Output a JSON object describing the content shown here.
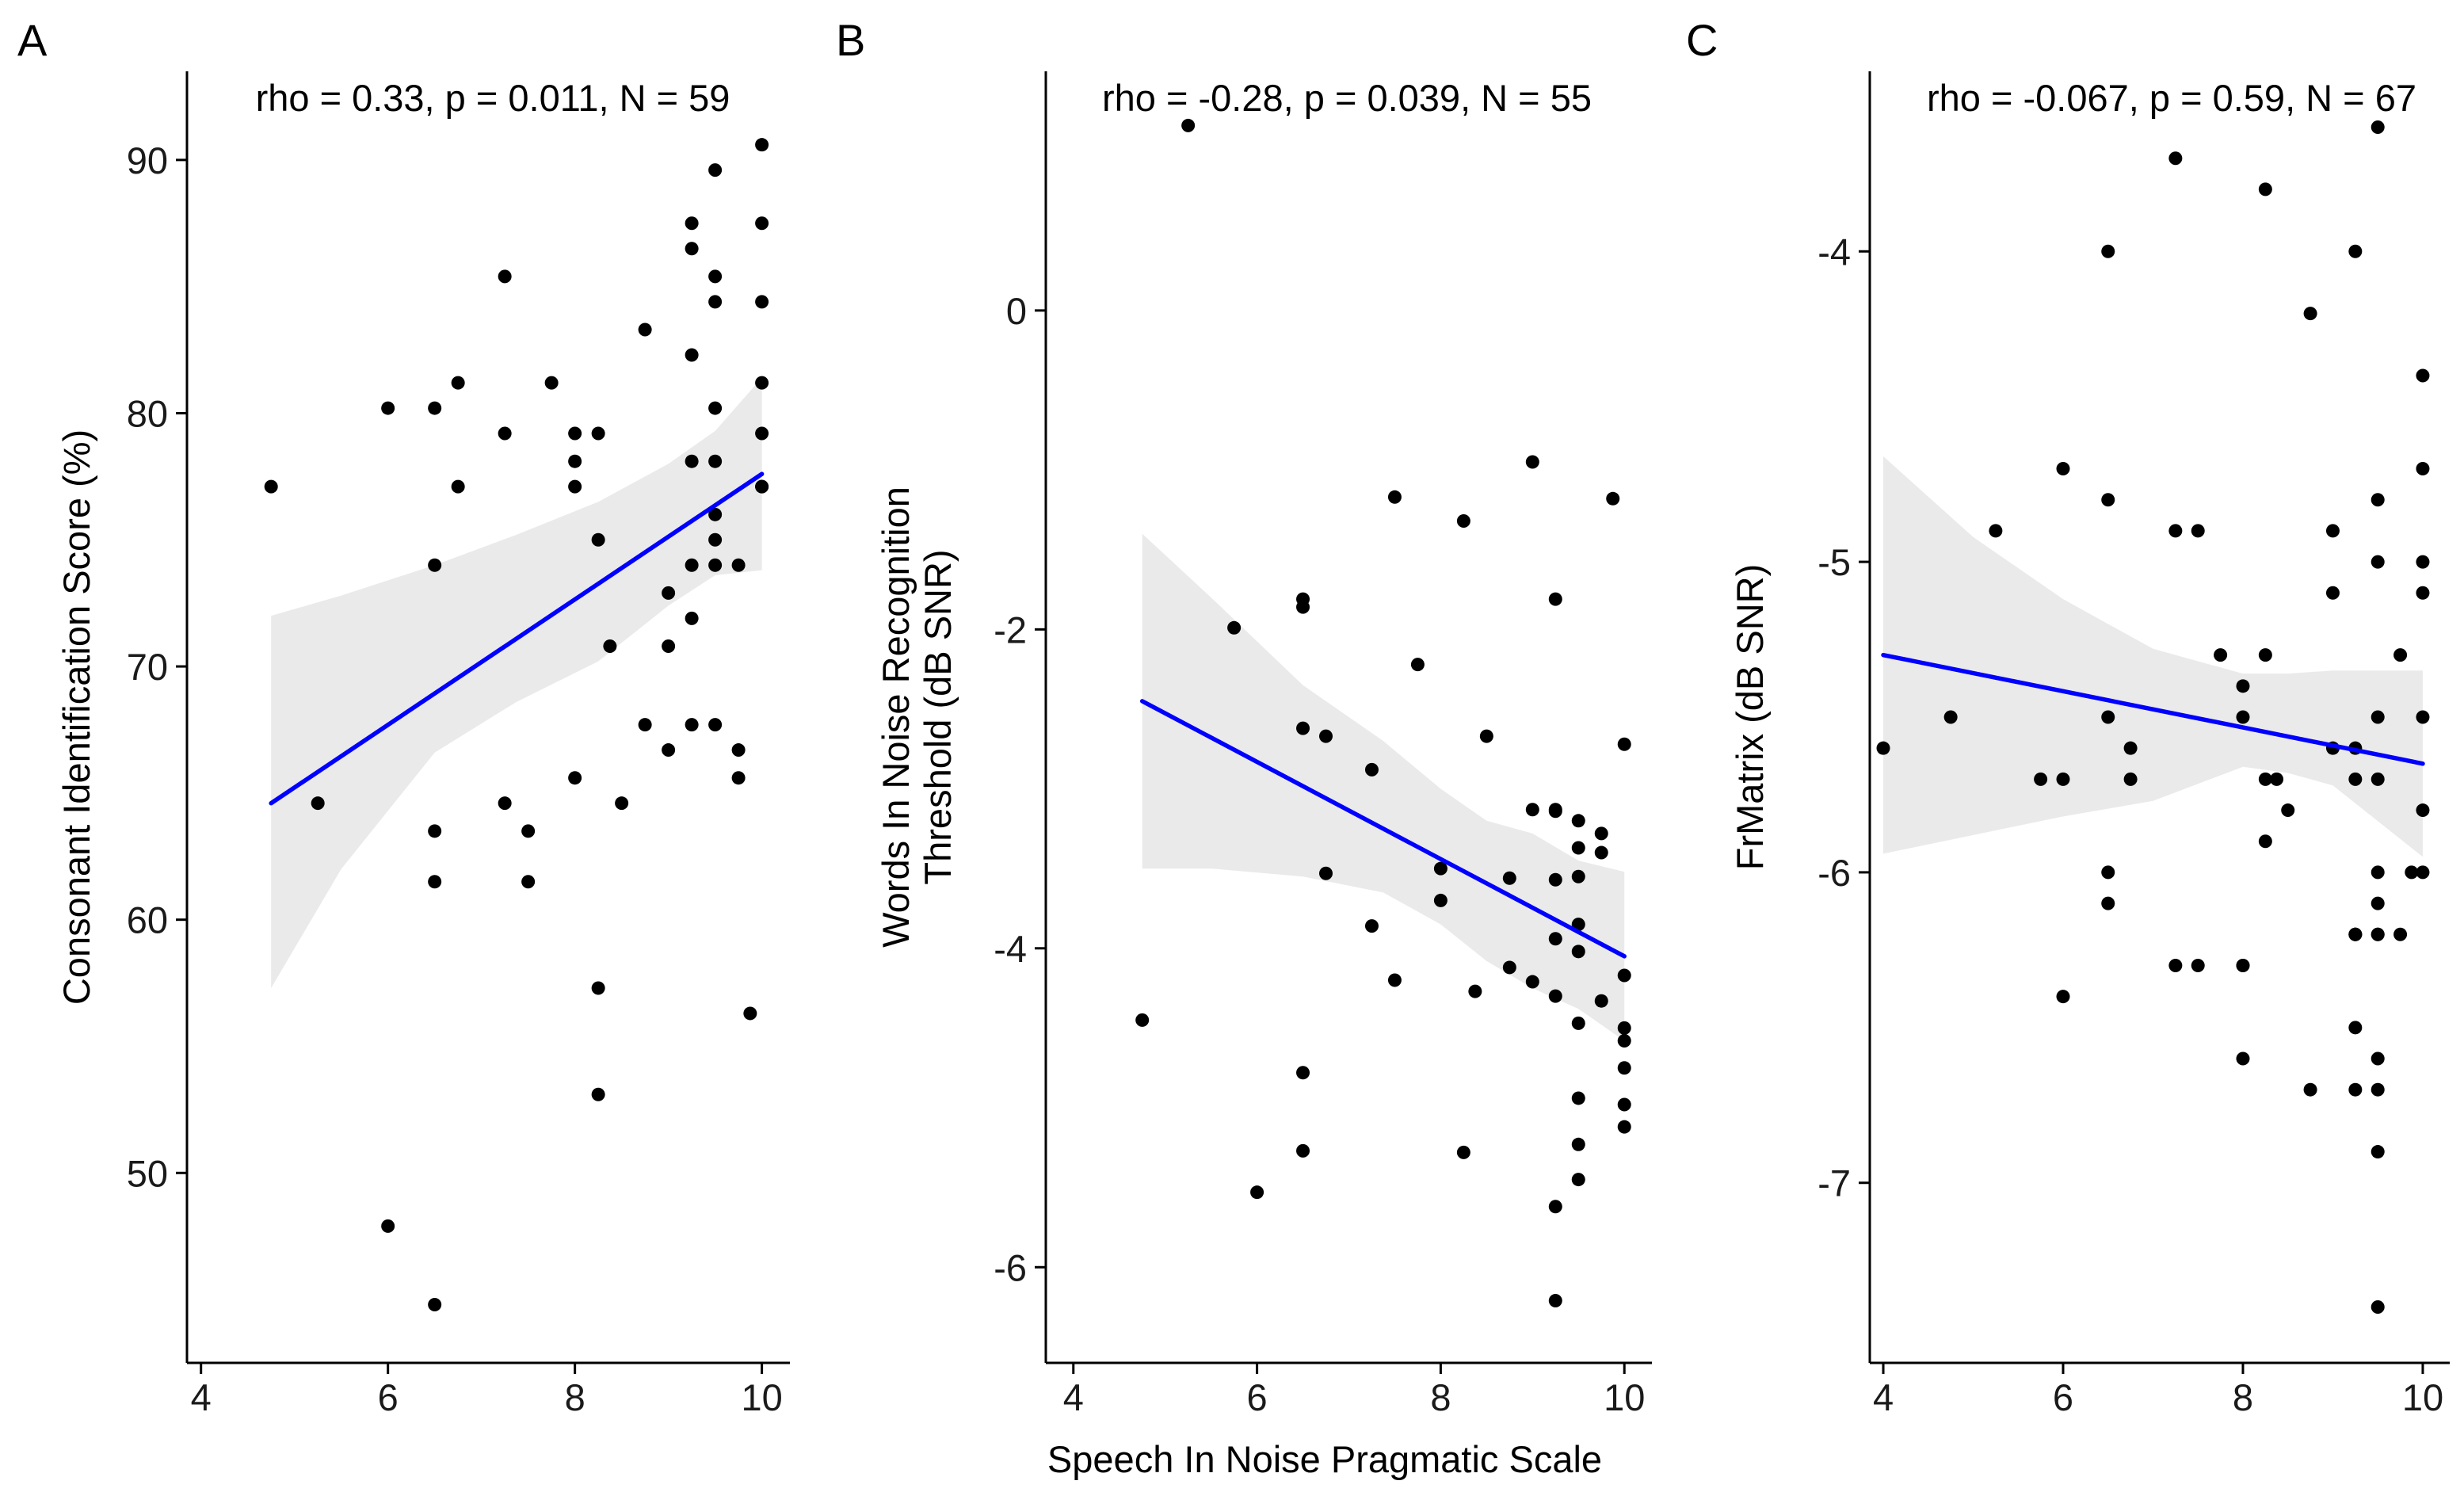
{
  "figure": {
    "xlabel": "Speech In Noise Pragmatic Scale",
    "colors": {
      "points": "#000000",
      "fit_line": "#0000ff",
      "ci_band": "#d9d9d9",
      "axis": "#000000"
    }
  },
  "chart_data": [
    {
      "panel": "A",
      "type": "scatter",
      "annotation": "rho = 0.33, p = 0.011, N = 59",
      "xlabel": "",
      "ylabel": "Consonant Identification Score (%)",
      "xlim": [
        3.85,
        10.3
      ],
      "ylim": [
        42.5,
        93.5
      ],
      "xticks": [
        4,
        6,
        8,
        10
      ],
      "xtick_labels": [
        "4",
        "6",
        "8",
        "10"
      ],
      "yticks": [
        50,
        60,
        70,
        80,
        90
      ],
      "ytick_labels": [
        "50",
        "60",
        "70",
        "80",
        "90"
      ],
      "fit": {
        "x": [
          4.75,
          10
        ],
        "y": [
          64.6,
          77.6
        ]
      },
      "ci_upper": [
        [
          4.75,
          72.0
        ],
        [
          5.5,
          72.8
        ],
        [
          6.5,
          74.0
        ],
        [
          7.375,
          75.2
        ],
        [
          8.25,
          76.5
        ],
        [
          9.0,
          78.0
        ],
        [
          9.5,
          79.3
        ],
        [
          10.0,
          81.4
        ]
      ],
      "ci_lower": [
        [
          4.75,
          57.3
        ],
        [
          5.5,
          62.0
        ],
        [
          6.5,
          66.6
        ],
        [
          7.375,
          68.6
        ],
        [
          8.25,
          70.2
        ],
        [
          9.0,
          72.4
        ],
        [
          9.5,
          73.6
        ],
        [
          10.0,
          73.8
        ]
      ],
      "points": {
        "x": [
          4.75,
          5.25,
          6,
          6,
          6.5,
          6.5,
          6.5,
          6.5,
          6.5,
          6.75,
          6.75,
          7.25,
          7.25,
          7.25,
          7.5,
          7.5,
          7.75,
          8,
          8,
          8,
          8,
          8.25,
          8.25,
          8.25,
          8.25,
          8.375,
          8.5,
          8.75,
          8.75,
          9,
          9,
          9,
          9.25,
          9.25,
          9.25,
          9.25,
          9.25,
          9.25,
          9.25,
          9.5,
          9.5,
          9.5,
          9.5,
          9.5,
          9.5,
          9.5,
          9.5,
          9.5,
          9.75,
          9.75,
          9.75,
          9.875,
          10,
          10,
          10,
          10,
          10,
          10,
          10
        ],
        "y": [
          77.1,
          64.6,
          80.2,
          47.9,
          80.2,
          74.0,
          63.5,
          61.5,
          44.8,
          81.2,
          77.1,
          85.4,
          79.2,
          64.6,
          63.5,
          61.5,
          81.2,
          79.2,
          78.1,
          77.1,
          65.6,
          79.2,
          75.0,
          57.3,
          53.1,
          70.8,
          64.6,
          83.3,
          67.7,
          72.9,
          70.8,
          66.7,
          87.5,
          86.5,
          82.3,
          78.1,
          74.0,
          71.9,
          67.7,
          89.6,
          85.4,
          84.4,
          80.2,
          78.1,
          76.0,
          75.0,
          74.0,
          67.7,
          74.0,
          66.7,
          65.6,
          56.3,
          90.6,
          87.5,
          84.4,
          81.2,
          79.2,
          77.1,
          77.1
        ]
      }
    },
    {
      "panel": "B",
      "type": "scatter",
      "annotation": "rho = -0.28, p = 0.039, N = 55",
      "xlabel": "Speech In Noise Pragmatic Scale",
      "ylabel": "Words In Noise Recognition Threshold (dB SNR)",
      "ylabel_lines": [
        "Words In Noise Recognition",
        "Threshold (dB SNR)"
      ],
      "xlim": [
        3.7,
        10.3
      ],
      "ylim": [
        -6.6,
        1.5
      ],
      "xticks": [
        4,
        6,
        8,
        10
      ],
      "xtick_labels": [
        "4",
        "6",
        "8",
        "10"
      ],
      "yticks": [
        -6,
        -4,
        -2,
        0
      ],
      "ytick_labels": [
        "-6",
        "-4",
        "-2",
        "0"
      ],
      "fit": {
        "x": [
          4.75,
          10
        ],
        "y": [
          -2.45,
          -4.05
        ]
      },
      "ci_upper": [
        [
          4.75,
          -1.4
        ],
        [
          5.5,
          -1.8
        ],
        [
          6.5,
          -2.35
        ],
        [
          7.375,
          -2.7
        ],
        [
          8.0,
          -3.0
        ],
        [
          8.5,
          -3.2
        ],
        [
          9.0,
          -3.28
        ],
        [
          9.5,
          -3.45
        ],
        [
          10.0,
          -3.52
        ]
      ],
      "ci_lower": [
        [
          4.75,
          -3.5
        ],
        [
          5.5,
          -3.5
        ],
        [
          6.5,
          -3.55
        ],
        [
          7.375,
          -3.65
        ],
        [
          8.0,
          -3.85
        ],
        [
          8.5,
          -4.08
        ],
        [
          9.0,
          -4.25
        ],
        [
          9.5,
          -4.38
        ],
        [
          10.0,
          -4.58
        ]
      ],
      "points": {
        "x": [
          4.75,
          5.25,
          5.75,
          6,
          6.5,
          6.5,
          6.5,
          6.5,
          6.5,
          6.75,
          6.75,
          7.25,
          7.25,
          7.5,
          7.5,
          7.75,
          8,
          8,
          8.25,
          8.25,
          8.375,
          8.5,
          8.75,
          8.75,
          9,
          9,
          9,
          9.25,
          9.25,
          9.25,
          9.25,
          9.25,
          9.25,
          9.25,
          9.25,
          9.5,
          9.5,
          9.5,
          9.5,
          9.5,
          9.5,
          9.5,
          9.5,
          9.5,
          9.75,
          9.75,
          9.75,
          9.875,
          10,
          10,
          10,
          10,
          10,
          10,
          10
        ],
        "y": [
          -4.45,
          1.16,
          -1.99,
          -5.53,
          -1.81,
          -1.86,
          -2.62,
          -4.78,
          -5.27,
          -2.67,
          -3.53,
          -2.88,
          -3.86,
          -1.17,
          -4.2,
          -2.22,
          -3.5,
          -3.7,
          -1.32,
          -5.28,
          -4.27,
          -2.67,
          -3.56,
          -4.12,
          -0.95,
          -3.13,
          -4.21,
          -1.81,
          -3.14,
          -3.57,
          -3.94,
          -4.3,
          -5.62,
          -6.21,
          -3.13,
          -3.2,
          -3.37,
          -3.55,
          -3.85,
          -4.02,
          -4.47,
          -4.94,
          -5.23,
          -5.45,
          -3.28,
          -3.4,
          -4.33,
          -1.18,
          -2.72,
          -4.17,
          -4.5,
          -4.58,
          -4.75,
          -4.98,
          -5.12
        ]
      }
    },
    {
      "panel": "C",
      "type": "scatter",
      "annotation": "rho = -0.067, p = 0.59, N = 67",
      "xlabel": "",
      "ylabel": "FrMatrix (dB SNR)",
      "xlim": [
        3.85,
        10.3
      ],
      "ylim": [
        -7.58,
        -3.42
      ],
      "xticks": [
        4,
        6,
        8,
        10
      ],
      "xtick_labels": [
        "4",
        "6",
        "8",
        "10"
      ],
      "yticks": [
        -7,
        -6,
        -5,
        -4
      ],
      "ytick_labels": [
        "-7",
        "-6",
        "-5",
        "-4"
      ],
      "fit": {
        "x": [
          4,
          10
        ],
        "y": [
          -5.3,
          -5.65
        ]
      },
      "ci_upper": [
        [
          4,
          -4.66
        ],
        [
          5.0,
          -4.92
        ],
        [
          6.0,
          -5.12
        ],
        [
          7.0,
          -5.28
        ],
        [
          8.0,
          -5.36
        ],
        [
          8.5,
          -5.36
        ],
        [
          9.0,
          -5.35
        ],
        [
          10.0,
          -5.35
        ]
      ],
      "ci_lower": [
        [
          4,
          -5.94
        ],
        [
          5.0,
          -5.88
        ],
        [
          6.0,
          -5.82
        ],
        [
          7.0,
          -5.77
        ],
        [
          8.0,
          -5.66
        ],
        [
          8.5,
          -5.68
        ],
        [
          9.0,
          -5.72
        ],
        [
          10.0,
          -5.95
        ]
      ],
      "points": {
        "x": [
          4,
          4.75,
          5.25,
          5.75,
          6,
          6,
          6,
          6.5,
          6.5,
          6.5,
          6.5,
          6.5,
          6.75,
          6.75,
          7.25,
          7.25,
          7.25,
          7.5,
          7.5,
          7.75,
          8,
          8,
          8,
          8,
          8,
          8.25,
          8.25,
          8.25,
          8.25,
          8.375,
          8.5,
          8.75,
          8.75,
          9,
          9,
          9,
          9.25,
          9.25,
          9.25,
          9.25,
          9.25,
          9.25,
          9.25,
          9.25,
          9.5,
          9.5,
          9.5,
          9.5,
          9.5,
          9.5,
          9.5,
          9.5,
          9.5,
          9.5,
          9.5,
          9.5,
          9.5,
          9.75,
          9.75,
          9.875,
          10,
          10,
          10,
          10,
          10,
          10,
          10
        ],
        "y": [
          -5.6,
          -5.5,
          -4.9,
          -5.7,
          -4.7,
          -5.7,
          -6.4,
          -4.0,
          -4.8,
          -5.5,
          -6.0,
          -6.1,
          -5.6,
          -5.7,
          -3.7,
          -4.9,
          -6.3,
          -4.9,
          -6.3,
          -5.3,
          -5.4,
          -5.5,
          -6.3,
          -6.6,
          -6.3,
          -3.8,
          -5.3,
          -5.7,
          -5.9,
          -5.7,
          -5.8,
          -4.2,
          -6.7,
          -4.9,
          -5.1,
          -5.6,
          -4.0,
          -5.6,
          -5.7,
          -6.2,
          -6.5,
          -6.7,
          -6.2,
          -6.2,
          -3.6,
          -4.8,
          -5.0,
          -5.5,
          -5.7,
          -6.0,
          -6.1,
          -6.2,
          -6.6,
          -6.7,
          -6.9,
          -7.4,
          -6.2,
          -5.3,
          -6.2,
          -6.0,
          -4.4,
          -4.7,
          -5.0,
          -5.1,
          -5.5,
          -5.8,
          -6.0
        ]
      }
    }
  ]
}
